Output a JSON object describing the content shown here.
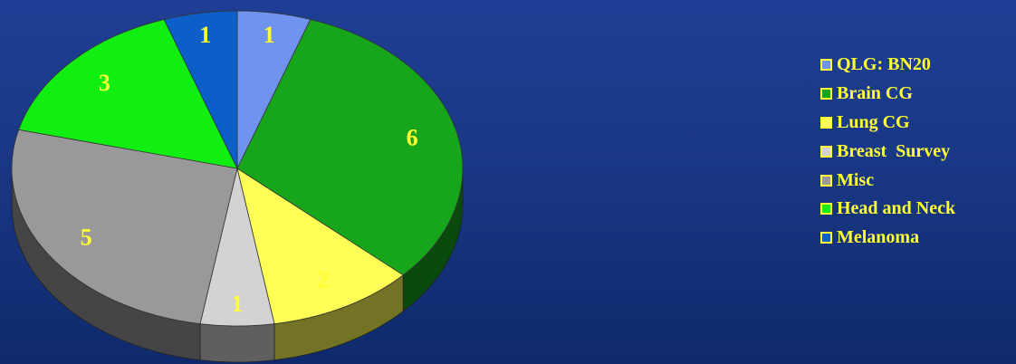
{
  "chart_data": {
    "type": "pie",
    "title": "",
    "categories": [
      "QLG: BN20",
      "Brain CG",
      "Lung CG",
      "Breast  Survey",
      "Misc",
      "Head and Neck",
      "Melanoma"
    ],
    "values": [
      1,
      6,
      2,
      1,
      5,
      3,
      1
    ],
    "colors": [
      "#6f93ee",
      "#17a51c",
      "#ffff55",
      "#d3d3d3",
      "#999999",
      "#11ee11",
      "#0c5fc9"
    ],
    "legend": {
      "position": "right",
      "items": [
        {
          "label": "QLG: BN20",
          "color": "#6f93ee"
        },
        {
          "label": "Brain CG",
          "color": "#17a51c"
        },
        {
          "label": "Lung CG",
          "color": "#ffff55"
        },
        {
          "label": "Breast  Survey",
          "color": "#d3d3d3"
        },
        {
          "label": "Misc",
          "color": "#999999"
        },
        {
          "label": "Head and Neck",
          "color": "#11ee11"
        },
        {
          "label": "Melanoma",
          "color": "#0c5fc9"
        }
      ]
    }
  }
}
